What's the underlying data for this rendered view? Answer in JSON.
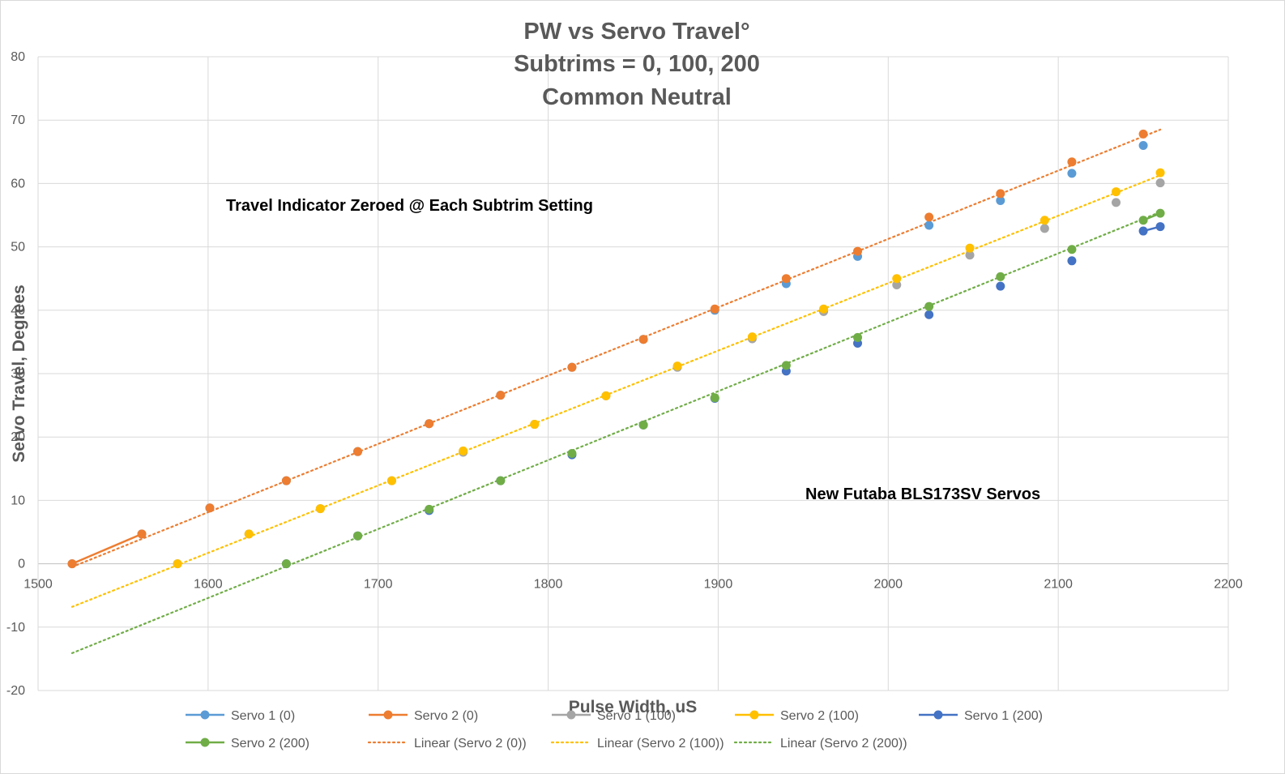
{
  "chart_data": {
    "type": "scatter",
    "title_lines": [
      "PW vs Servo Travel°",
      "Subtrims = 0, 100, 200",
      "Common Neutral"
    ],
    "xlabel": "Pulse Width, uS",
    "ylabel": "Servo Travel, Degrees",
    "xlim": [
      1500,
      2200
    ],
    "ylim": [
      -20,
      80
    ],
    "x_ticks": [
      1500,
      1600,
      1700,
      1800,
      1900,
      2000,
      2100,
      2200
    ],
    "y_ticks": [
      -20,
      -10,
      0,
      10,
      20,
      30,
      40,
      50,
      60,
      70,
      80
    ],
    "grid": true,
    "legend_position": "bottom",
    "annotations": [
      "Travel Indicator Zeroed @ Each Subtrim Setting",
      "New Futaba  BLS173SV Servos"
    ],
    "series": [
      {
        "name": "Servo 1 (0)",
        "color": "#5b9bd5",
        "style": "markers",
        "points": [
          [
            1520,
            0
          ],
          [
            1561,
            4.7
          ],
          [
            1601,
            8.8
          ],
          [
            1646,
            13.1
          ],
          [
            1688,
            17.7
          ],
          [
            1730,
            22.1
          ],
          [
            1772,
            26.6
          ],
          [
            1814,
            31.0
          ],
          [
            1856,
            35.4
          ],
          [
            1898,
            40.0
          ],
          [
            1940,
            44.2
          ],
          [
            1982,
            48.5
          ],
          [
            2024,
            53.4
          ],
          [
            2066,
            57.3
          ],
          [
            2108,
            61.6
          ],
          [
            2150,
            66.0
          ]
        ]
      },
      {
        "name": "Servo 2 (0)",
        "color": "#ed7d31",
        "style": "markers",
        "points": [
          [
            1520,
            0
          ],
          [
            1561,
            4.7
          ],
          [
            1601,
            8.8
          ],
          [
            1646,
            13.1
          ],
          [
            1688,
            17.7
          ],
          [
            1730,
            22.1
          ],
          [
            1772,
            26.6
          ],
          [
            1814,
            31.0
          ],
          [
            1856,
            35.4
          ],
          [
            1898,
            40.2
          ],
          [
            1940,
            45.0
          ],
          [
            1982,
            49.3
          ],
          [
            2024,
            54.7
          ],
          [
            2066,
            58.4
          ],
          [
            2108,
            63.4
          ],
          [
            2150,
            67.8
          ]
        ],
        "line_through": [
          [
            1520,
            0
          ],
          [
            1561,
            4.7
          ]
        ]
      },
      {
        "name": "Servo 1 (100)",
        "color": "#a5a5a5",
        "style": "markers",
        "points": [
          [
            1582,
            0
          ],
          [
            1624,
            4.7
          ],
          [
            1666,
            8.7
          ],
          [
            1708,
            13.1
          ],
          [
            1750,
            17.6
          ],
          [
            1792,
            22.0
          ],
          [
            1834,
            26.5
          ],
          [
            1876,
            31.0
          ],
          [
            1920,
            35.5
          ],
          [
            1962,
            39.8
          ],
          [
            2005,
            44.0
          ],
          [
            2048,
            48.7
          ],
          [
            2092,
            52.9
          ],
          [
            2134,
            57.0
          ],
          [
            2160,
            60.1
          ]
        ]
      },
      {
        "name": "Servo 2 (100)",
        "color": "#ffc000",
        "style": "markers",
        "points": [
          [
            1582,
            0
          ],
          [
            1624,
            4.7
          ],
          [
            1666,
            8.7
          ],
          [
            1708,
            13.1
          ],
          [
            1750,
            17.8
          ],
          [
            1792,
            22.0
          ],
          [
            1834,
            26.5
          ],
          [
            1876,
            31.2
          ],
          [
            1920,
            35.8
          ],
          [
            1962,
            40.2
          ],
          [
            2005,
            45.0
          ],
          [
            2048,
            49.8
          ],
          [
            2092,
            54.2
          ],
          [
            2134,
            58.7
          ],
          [
            2160,
            61.7
          ]
        ]
      },
      {
        "name": "Servo 1 (200)",
        "color": "#4472c4",
        "style": "markers",
        "points": [
          [
            1646,
            0
          ],
          [
            1688,
            4.4
          ],
          [
            1730,
            8.4
          ],
          [
            1772,
            13.1
          ],
          [
            1814,
            17.2
          ],
          [
            1856,
            21.9
          ],
          [
            1898,
            26.1
          ],
          [
            1940,
            30.4
          ],
          [
            1982,
            34.8
          ],
          [
            2024,
            39.3
          ],
          [
            2066,
            43.8
          ],
          [
            2108,
            47.8
          ],
          [
            2150,
            52.5
          ],
          [
            2160,
            53.2
          ]
        ],
        "line_through": [
          [
            2150,
            52.5
          ],
          [
            2160,
            53.2
          ]
        ]
      },
      {
        "name": "Servo 2 (200)",
        "color": "#70ad47",
        "style": "markers",
        "points": [
          [
            1646,
            0
          ],
          [
            1688,
            4.4
          ],
          [
            1730,
            8.6
          ],
          [
            1772,
            13.1
          ],
          [
            1814,
            17.4
          ],
          [
            1856,
            21.9
          ],
          [
            1898,
            26.2
          ],
          [
            1940,
            31.3
          ],
          [
            1982,
            35.7
          ],
          [
            2024,
            40.6
          ],
          [
            2066,
            45.3
          ],
          [
            2108,
            49.6
          ],
          [
            2150,
            54.2
          ],
          [
            2160,
            55.3
          ]
        ],
        "line_through": [
          [
            2150,
            54.2
          ],
          [
            2160,
            55.3
          ]
        ]
      },
      {
        "name": "Linear (Servo 2 (0))",
        "color": "#ed7d31",
        "style": "dotted-line",
        "points": [
          [
            1520,
            -0.5
          ],
          [
            2160,
            68.5
          ]
        ]
      },
      {
        "name": "Linear (Servo 2 (100))",
        "color": "#ffc000",
        "style": "dotted-line",
        "points": [
          [
            1520,
            -6.8
          ],
          [
            2160,
            61.3
          ]
        ]
      },
      {
        "name": "Linear (Servo 2 (200))",
        "color": "#70ad47",
        "style": "dotted-line",
        "points": [
          [
            1520,
            -14.1
          ],
          [
            2160,
            55.5
          ]
        ]
      }
    ]
  }
}
